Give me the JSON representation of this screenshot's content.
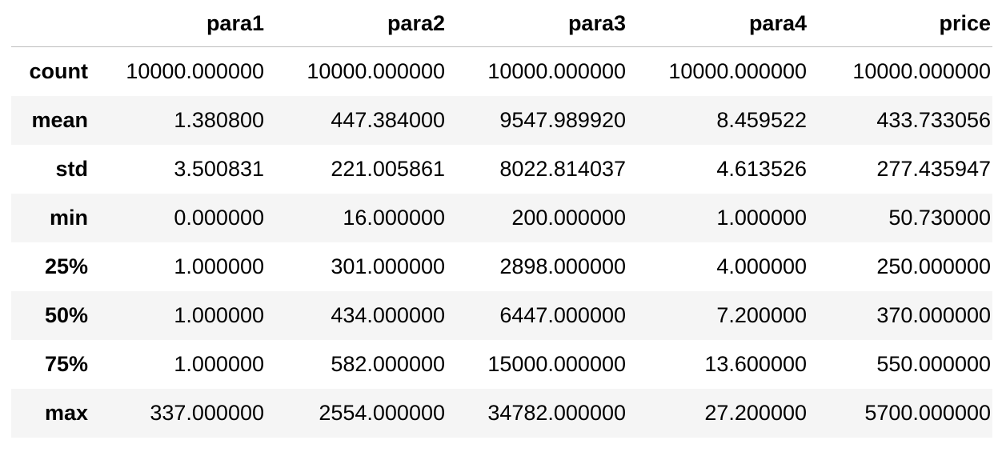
{
  "table": {
    "columns": [
      "",
      "para1",
      "para2",
      "para3",
      "para4",
      "price"
    ],
    "rows": [
      {
        "label": "count",
        "values": [
          "10000.000000",
          "10000.000000",
          "10000.000000",
          "10000.000000",
          "10000.000000"
        ]
      },
      {
        "label": "mean",
        "values": [
          "1.380800",
          "447.384000",
          "9547.989920",
          "8.459522",
          "433.733056"
        ]
      },
      {
        "label": "std",
        "values": [
          "3.500831",
          "221.005861",
          "8022.814037",
          "4.613526",
          "277.435947"
        ]
      },
      {
        "label": "min",
        "values": [
          "0.000000",
          "16.000000",
          "200.000000",
          "1.000000",
          "50.730000"
        ]
      },
      {
        "label": "25%",
        "values": [
          "1.000000",
          "301.000000",
          "2898.000000",
          "4.000000",
          "250.000000"
        ]
      },
      {
        "label": "50%",
        "values": [
          "1.000000",
          "434.000000",
          "6447.000000",
          "7.200000",
          "370.000000"
        ]
      },
      {
        "label": "75%",
        "values": [
          "1.000000",
          "582.000000",
          "15000.000000",
          "13.600000",
          "550.000000"
        ]
      },
      {
        "label": "max",
        "values": [
          "337.000000",
          "2554.000000",
          "34782.000000",
          "27.200000",
          "5700.000000"
        ]
      }
    ]
  }
}
